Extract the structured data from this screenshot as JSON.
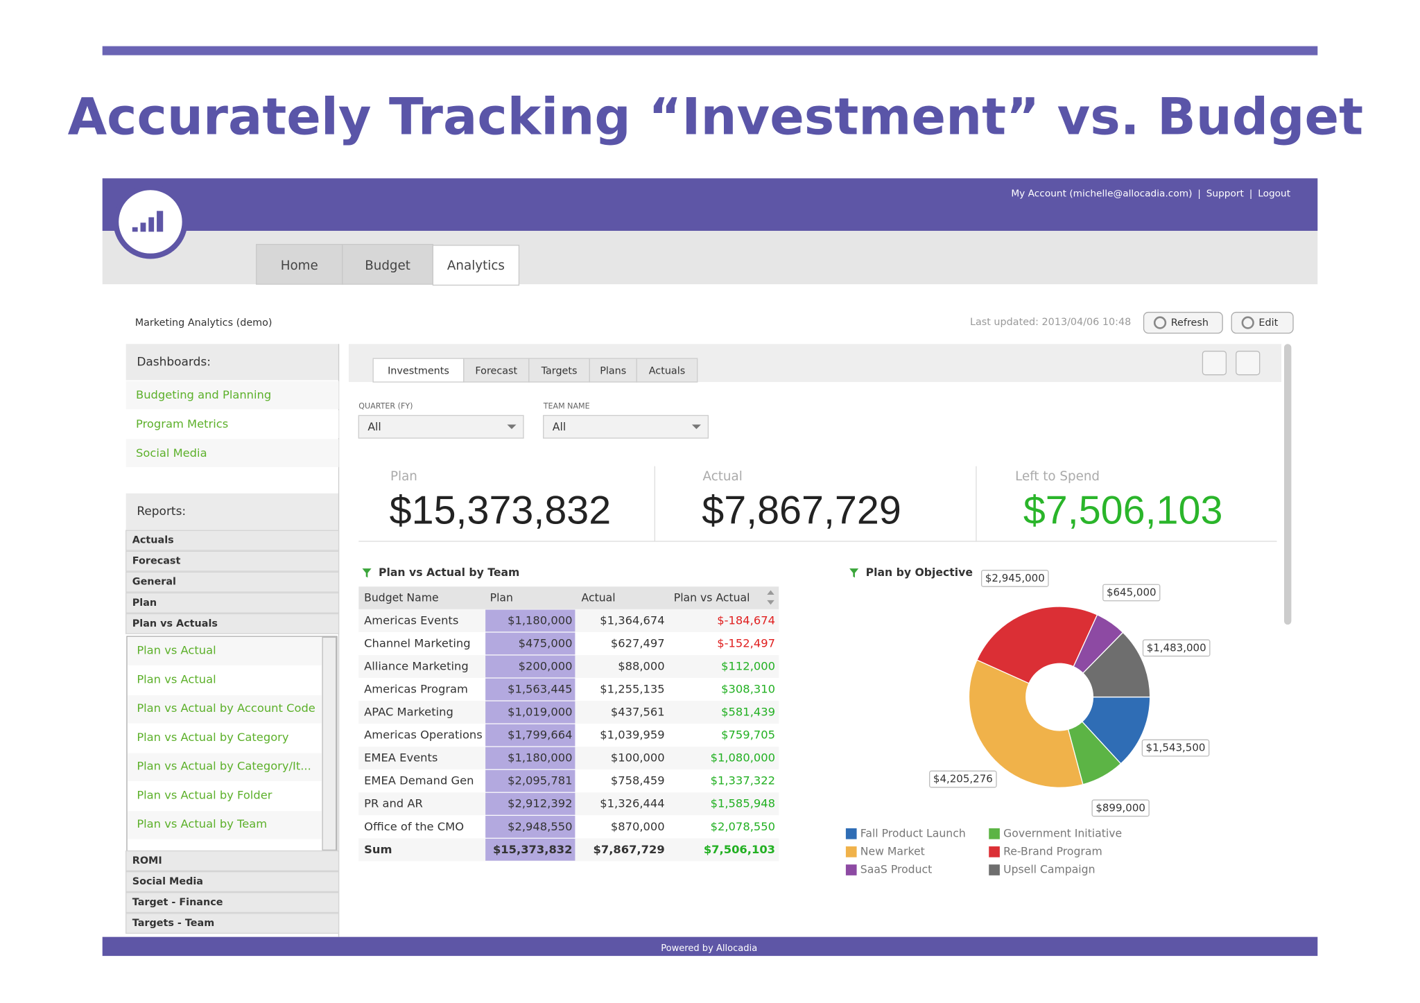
{
  "slide": {
    "title": "Accurately Tracking “Investment” vs. Budget"
  },
  "app": {
    "account_links": [
      "My Account (michelle@allocadia.com)",
      "Support",
      "Logout"
    ],
    "separator": "|",
    "nav_tabs": [
      "Home",
      "Budget",
      "Analytics"
    ],
    "page_title": "Marketing Analytics (demo)",
    "last_updated": "Last updated: 2013/04/06 10:48",
    "buttons": [
      "Refresh",
      "Edit"
    ],
    "footer": "Powered by Allocadia"
  },
  "sidebar": {
    "dashboards_header": "Dashboards:",
    "dashboards": [
      "Budgeting and Planning",
      "Program Metrics",
      "Social Media"
    ],
    "reports_header": "Reports:",
    "report_groups_top": [
      "Actuals",
      "Forecast",
      "General",
      "Plan",
      "Plan vs Actuals"
    ],
    "report_items": [
      "Plan vs Actual",
      "Plan vs Actual",
      "Plan vs Actual by Account Code",
      "Plan vs Actual by Category",
      "Plan vs Actual by Category/It...",
      "Plan vs Actual by Folder",
      "Plan vs Actual by Team"
    ],
    "report_groups_bottom": [
      "ROMI",
      "Social Media",
      "Target - Finance",
      "Targets - Team"
    ]
  },
  "dashboard": {
    "tabs": [
      "Investments",
      "Forecast",
      "Targets",
      "Plans",
      "Actuals"
    ],
    "filters": [
      {
        "label": "QUARTER (FY)",
        "value": "All"
      },
      {
        "label": "TEAM NAME",
        "value": "All"
      }
    ],
    "kpis": [
      {
        "label": "Plan",
        "value": "$15,373,832"
      },
      {
        "label": "Actual",
        "value": "$7,867,729"
      },
      {
        "label": "Left to Spend",
        "value": "$7,506,103"
      }
    ],
    "table": {
      "title": "Plan vs Actual by Team",
      "columns": [
        "Budget Name",
        "Plan",
        "Actual",
        "Plan vs Actual"
      ],
      "rows": [
        [
          "Americas Events",
          "$1,180,000",
          "$1,364,674",
          "$-184,674"
        ],
        [
          "Channel Marketing",
          "$475,000",
          "$627,497",
          "$-152,497"
        ],
        [
          "Alliance Marketing",
          "$200,000",
          "$88,000",
          "$112,000"
        ],
        [
          "Americas Program",
          "$1,563,445",
          "$1,255,135",
          "$308,310"
        ],
        [
          "APAC Marketing",
          "$1,019,000",
          "$437,561",
          "$581,439"
        ],
        [
          "Americas Operations",
          "$1,799,664",
          "$1,039,959",
          "$759,705"
        ],
        [
          "EMEA Events",
          "$1,180,000",
          "$100,000",
          "$1,080,000"
        ],
        [
          "EMEA Demand Gen",
          "$2,095,781",
          "$758,459",
          "$1,337,322"
        ],
        [
          "PR and AR",
          "$2,912,392",
          "$1,326,444",
          "$1,585,948"
        ],
        [
          "Office of the CMO",
          "$2,948,550",
          "$870,000",
          "$2,078,550"
        ],
        [
          "Sum",
          "$15,373,832",
          "$7,867,729",
          "$7,506,103"
        ]
      ]
    }
  },
  "chart_data": {
    "type": "pie",
    "title": "Plan by Objective",
    "categories": [
      "Fall Product Launch",
      "Government Initiative",
      "New Market",
      "Re-Brand Program",
      "SaaS Product",
      "Upsell Campaign"
    ],
    "values": [
      1543500,
      899000,
      4205276,
      2945000,
      645000,
      1483000
    ],
    "value_labels": [
      "$1,543,500",
      "$899,000",
      "$4,205,276",
      "$2,945,000",
      "$645,000",
      "$1,483,000"
    ],
    "colors": [
      "#2f6db5",
      "#5cb445",
      "#f0b24a",
      "#db2f35",
      "#8d4aa3",
      "#6e6e6e"
    ]
  }
}
